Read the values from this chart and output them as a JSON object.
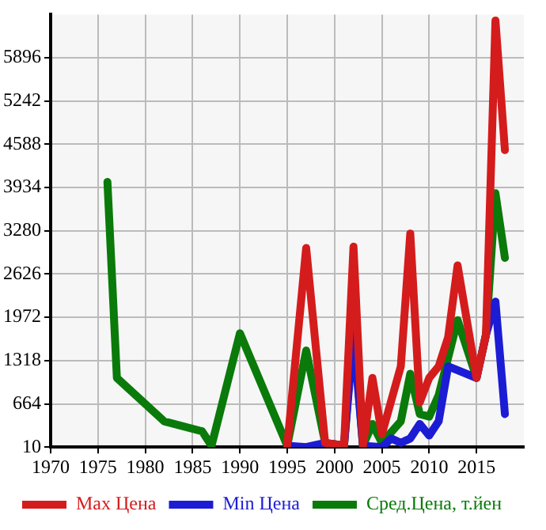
{
  "chart_data": {
    "type": "line",
    "xlim": [
      1970,
      2020
    ],
    "xticks": [
      1970,
      1975,
      1980,
      1985,
      1990,
      1995,
      2000,
      2005,
      2010,
      2015
    ],
    "ylim": [
      10,
      6550
    ],
    "yticks": [
      10,
      664,
      1318,
      1972,
      2626,
      3280,
      3934,
      4588,
      5242,
      5896
    ],
    "grid": true,
    "legend": "bottom",
    "marker": "none",
    "line_style": "solid",
    "series": [
      {
        "name": "Max Цена",
        "color": "#d41c1c",
        "x": [
          1995,
          1997,
          1999,
          2001,
          2002,
          2003,
          2004,
          2005,
          2007,
          2008,
          2009,
          2010,
          2011,
          2012,
          2013,
          2015,
          2016,
          2017,
          2018
        ],
        "values": [
          30,
          3020,
          75,
          30,
          3040,
          30,
          1056,
          206,
          1230,
          3240,
          686,
          1056,
          1230,
          1670,
          2757,
          1056,
          1710,
          6460,
          4500
        ]
      },
      {
        "name": "Min Цена",
        "color": "#1c1cd4",
        "x": [
          1995,
          1997,
          1999,
          2001,
          2002,
          2003,
          2005,
          2006,
          2007,
          2008,
          2009,
          2010,
          2011,
          2012,
          2015,
          2016,
          2017,
          2018
        ],
        "values": [
          30,
          10,
          75,
          30,
          1700,
          30,
          10,
          140,
          75,
          140,
          360,
          185,
          400,
          1230,
          1056,
          1710,
          2210,
          510
        ]
      },
      {
        "name": "Сред.Цена, т.йен",
        "color": "#0a7a0a",
        "x": [
          1976,
          1977,
          1982,
          1986,
          1987,
          1990,
          1995,
          1997,
          1999,
          2001,
          2002,
          2003,
          2004,
          2005,
          2007,
          2008,
          2009,
          2010,
          2011,
          2013,
          2015,
          2016,
          2017,
          2018
        ],
        "values": [
          4020,
          1056,
          400,
          250,
          30,
          1732,
          30,
          1470,
          75,
          30,
          1820,
          30,
          360,
          75,
          400,
          1120,
          510,
          470,
          795,
          1930,
          1056,
          1710,
          3850,
          2870
        ]
      }
    ]
  }
}
